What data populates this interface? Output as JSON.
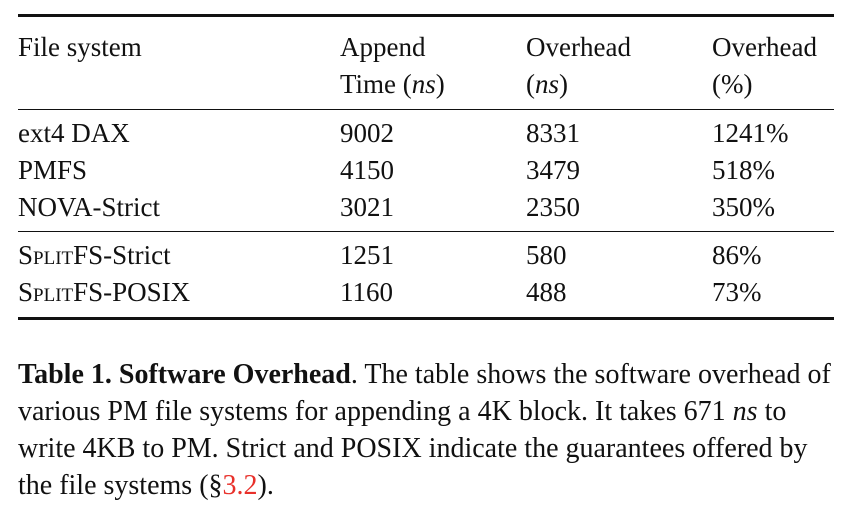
{
  "table": {
    "headers": [
      {
        "line1": "File system",
        "line2": "",
        "unit": ""
      },
      {
        "line1": "Append",
        "line2": "Time (",
        "unit": "ns",
        "close": ")"
      },
      {
        "line1": "Overhead",
        "line2": "(",
        "unit": "ns",
        "close": ")"
      },
      {
        "line1": "Overhead",
        "line2": "(%)",
        "unit": "",
        "close": ""
      }
    ],
    "group1": [
      {
        "fs": "ext4 DAX",
        "append": "9002",
        "overhead_ns": "8331",
        "overhead_pct": "1241%"
      },
      {
        "fs": "PMFS",
        "append": "4150",
        "overhead_ns": "3479",
        "overhead_pct": "518%"
      },
      {
        "fs": "NOVA-Strict",
        "append": "3021",
        "overhead_ns": "2350",
        "overhead_pct": "350%"
      }
    ],
    "group2": [
      {
        "fs_sc": "SplitFS",
        "fs_suffix": "-Strict",
        "append": "1251",
        "overhead_ns": "580",
        "overhead_pct": "86%"
      },
      {
        "fs_sc": "SplitFS",
        "fs_suffix": "-POSIX",
        "append": "1160",
        "overhead_ns": "488",
        "overhead_pct": "73%"
      }
    ]
  },
  "caption": {
    "label": "Table 1. Software Overhead",
    "text1": ". The table shows the software overhead of various PM file systems for appending a 4K block. It takes 671 ",
    "unit": "ns",
    "text2": " to write 4KB to PM. Strict and POSIX indicate the guarantees offered by the file systems (",
    "ref_symbol": "§",
    "ref": "3.2",
    "text3": ")."
  }
}
